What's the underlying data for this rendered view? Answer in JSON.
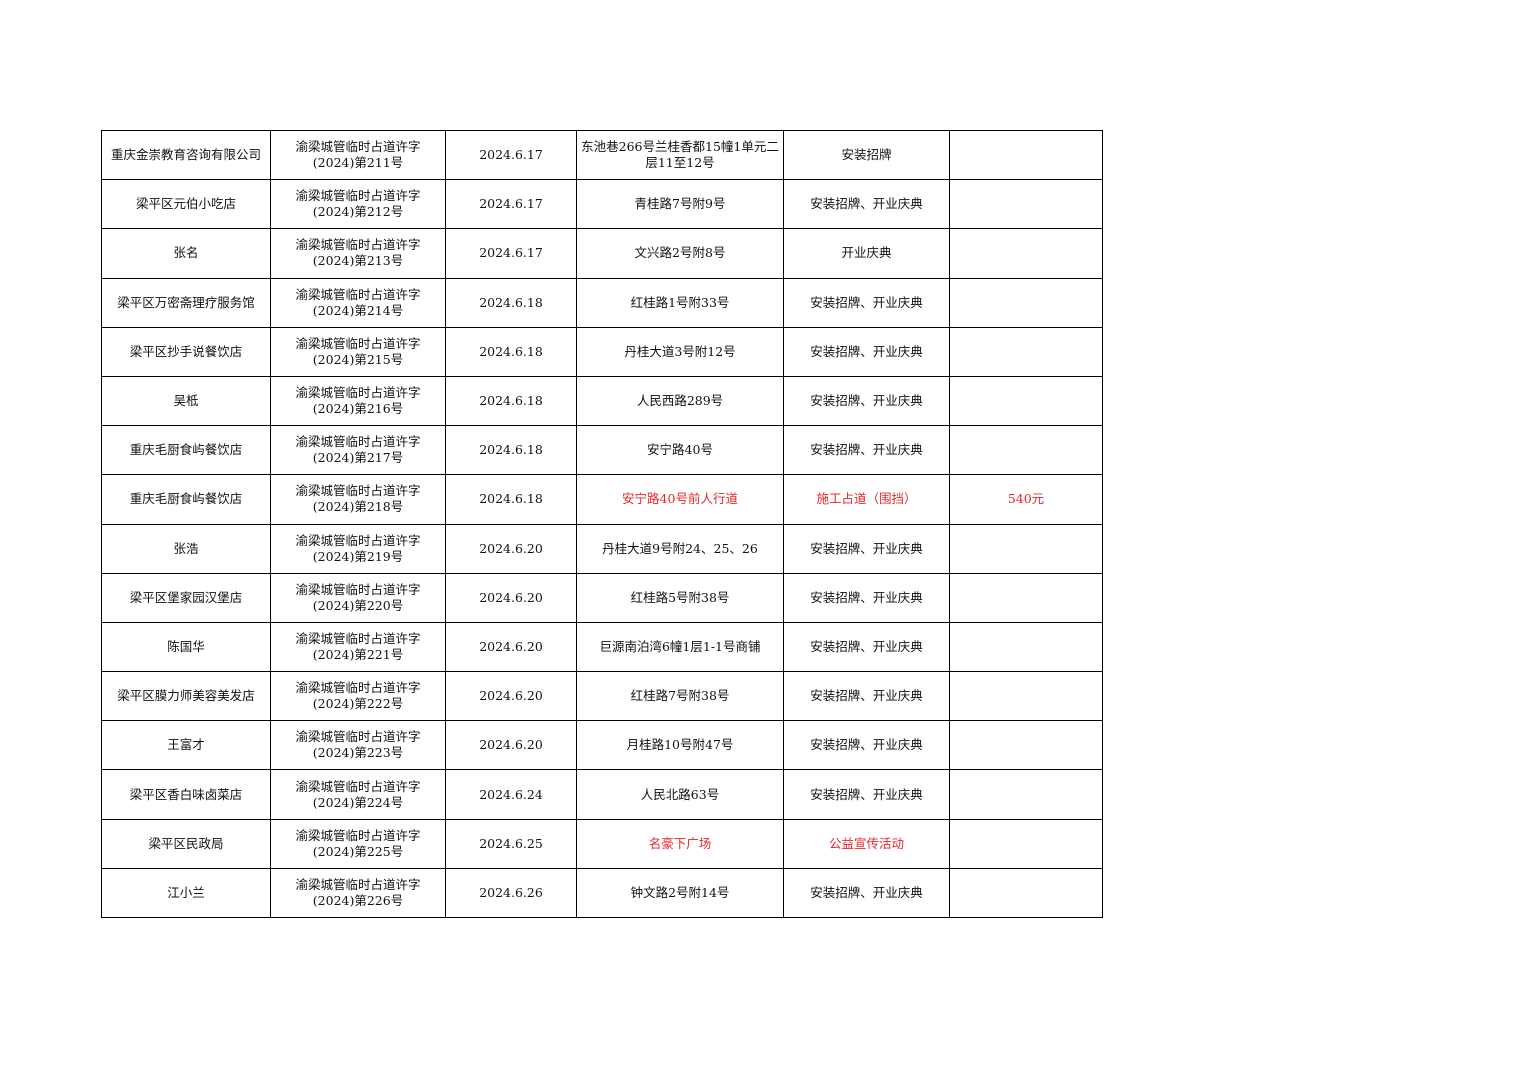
{
  "accent_red": "#e8262a",
  "rows": [
    {
      "applicant": "重庆金崇教育咨询有限公司",
      "permit_line1": "渝梁城管临时占道许字",
      "permit_line2": "(2024)第211号",
      "date": "2024.6.17",
      "location": "东池巷266号兰桂香都15幢1单元二层11至12号",
      "purpose": "安装招牌",
      "fee": "",
      "highlight": false
    },
    {
      "applicant": "梁平区元伯小吃店",
      "permit_line1": "渝梁城管临时占道许字",
      "permit_line2": "(2024)第212号",
      "date": "2024.6.17",
      "location": "青桂路7号附9号",
      "purpose": "安装招牌、开业庆典",
      "fee": "",
      "highlight": false
    },
    {
      "applicant": "张名",
      "permit_line1": "渝梁城管临时占道许字",
      "permit_line2": "(2024)第213号",
      "date": "2024.6.17",
      "location": "文兴路2号附8号",
      "purpose": "开业庆典",
      "fee": "",
      "highlight": false
    },
    {
      "applicant": "梁平区万密斋理疗服务馆",
      "permit_line1": "渝梁城管临时占道许字",
      "permit_line2": "(2024)第214号",
      "date": "2024.6.18",
      "location": "红桂路1号附33号",
      "purpose": "安装招牌、开业庆典",
      "fee": "",
      "highlight": false
    },
    {
      "applicant": "梁平区抄手说餐饮店",
      "permit_line1": "渝梁城管临时占道许字",
      "permit_line2": "(2024)第215号",
      "date": "2024.6.18",
      "location": "丹桂大道3号附12号",
      "purpose": "安装招牌、开业庆典",
      "fee": "",
      "highlight": false
    },
    {
      "applicant": "吴柢",
      "permit_line1": "渝梁城管临时占道许字",
      "permit_line2": "(2024)第216号",
      "date": "2024.6.18",
      "location": "人民西路289号",
      "purpose": "安装招牌、开业庆典",
      "fee": "",
      "highlight": false
    },
    {
      "applicant": "重庆毛厨食屿餐饮店",
      "permit_line1": "渝梁城管临时占道许字",
      "permit_line2": "(2024)第217号",
      "date": "2024.6.18",
      "location": "安宁路40号",
      "purpose": "安装招牌、开业庆典",
      "fee": "",
      "highlight": false
    },
    {
      "applicant": "重庆毛厨食屿餐饮店",
      "permit_line1": "渝梁城管临时占道许字",
      "permit_line2": "(2024)第218号",
      "date": "2024.6.18",
      "location": "安宁路40号前人行道",
      "purpose": "施工占道（围挡）",
      "fee": "540元",
      "highlight": true
    },
    {
      "applicant": "张浩",
      "permit_line1": "渝梁城管临时占道许字",
      "permit_line2": "(2024)第219号",
      "date": "2024.6.20",
      "location": "丹桂大道9号附24、25、26",
      "purpose": "安装招牌、开业庆典",
      "fee": "",
      "highlight": false
    },
    {
      "applicant": "梁平区堡家园汉堡店",
      "permit_line1": "渝梁城管临时占道许字",
      "permit_line2": "(2024)第220号",
      "date": "2024.6.20",
      "location": "红桂路5号附38号",
      "purpose": "安装招牌、开业庆典",
      "fee": "",
      "highlight": false
    },
    {
      "applicant": "陈国华",
      "permit_line1": "渝梁城管临时占道许字",
      "permit_line2": "(2024)第221号",
      "date": "2024.6.20",
      "location": "巨源南泊湾6幢1层1-1号商铺",
      "purpose": "安装招牌、开业庆典",
      "fee": "",
      "highlight": false
    },
    {
      "applicant": "梁平区膜力师美容美发店",
      "permit_line1": "渝梁城管临时占道许字",
      "permit_line2": "(2024)第222号",
      "date": "2024.6.20",
      "location": "红桂路7号附38号",
      "purpose": "安装招牌、开业庆典",
      "fee": "",
      "highlight": false
    },
    {
      "applicant": "王富才",
      "permit_line1": "渝梁城管临时占道许字",
      "permit_line2": "(2024)第223号",
      "date": "2024.6.20",
      "location": "月桂路10号附47号",
      "purpose": "安装招牌、开业庆典",
      "fee": "",
      "highlight": false
    },
    {
      "applicant": "梁平区香白味卤菜店",
      "permit_line1": "渝梁城管临时占道许字",
      "permit_line2": "(2024)第224号",
      "date": "2024.6.24",
      "location": "人民北路63号",
      "purpose": "安装招牌、开业庆典",
      "fee": "",
      "highlight": false
    },
    {
      "applicant": "梁平区民政局",
      "permit_line1": "渝梁城管临时占道许字",
      "permit_line2": "(2024)第225号",
      "date": "2024.6.25",
      "location": "名豪下广场",
      "purpose": "公益宣传活动",
      "fee": "",
      "highlight": true
    },
    {
      "applicant": "江小兰",
      "permit_line1": "渝梁城管临时占道许字",
      "permit_line2": "(2024)第226号",
      "date": "2024.6.26",
      "location": "钟文路2号附14号",
      "purpose": "安装招牌、开业庆典",
      "fee": "",
      "highlight": false
    }
  ]
}
